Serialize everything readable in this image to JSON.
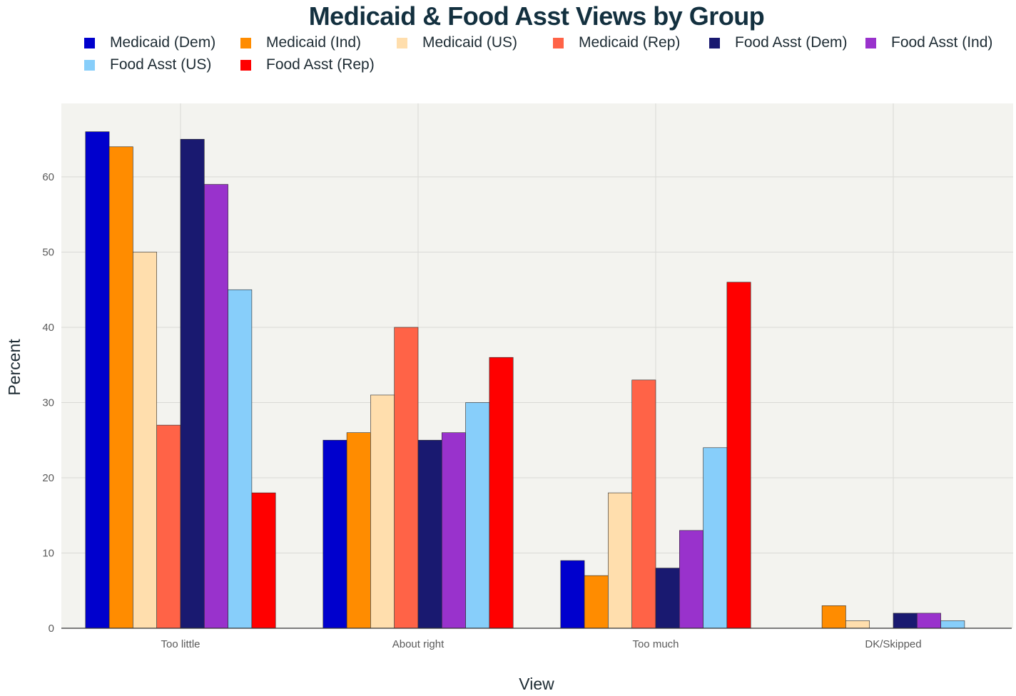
{
  "chart_data": {
    "type": "bar",
    "title": "Medicaid & Food Asst Views by Group",
    "xlabel": "View",
    "ylabel": "Percent",
    "categories": [
      "Too little",
      "About right",
      "Too much",
      "DK/Skipped"
    ],
    "ylim": [
      0,
      70
    ],
    "yticks": [
      0,
      10,
      20,
      30,
      40,
      50,
      60
    ],
    "grid": true,
    "legend_position": "top",
    "series": [
      {
        "name": "Medicaid (Dem)",
        "color": "#0000cd",
        "values": [
          66,
          25,
          9,
          0
        ]
      },
      {
        "name": "Medicaid (Ind)",
        "color": "#ff8c00",
        "values": [
          64,
          26,
          7,
          3
        ]
      },
      {
        "name": "Medicaid (US)",
        "color": "#ffdead",
        "values": [
          50,
          31,
          18,
          1
        ]
      },
      {
        "name": "Medicaid (Rep)",
        "color": "#ff6347",
        "values": [
          27,
          40,
          33,
          0
        ]
      },
      {
        "name": "Food Asst (Dem)",
        "color": "#191970",
        "values": [
          65,
          25,
          8,
          2
        ]
      },
      {
        "name": "Food Asst (Ind)",
        "color": "#9932cc",
        "values": [
          59,
          26,
          13,
          2
        ]
      },
      {
        "name": "Food Asst (US)",
        "color": "#87cefa",
        "values": [
          45,
          30,
          24,
          1
        ]
      },
      {
        "name": "Food Asst (Rep)",
        "color": "#ff0000",
        "values": [
          18,
          36,
          46,
          0
        ]
      }
    ]
  }
}
